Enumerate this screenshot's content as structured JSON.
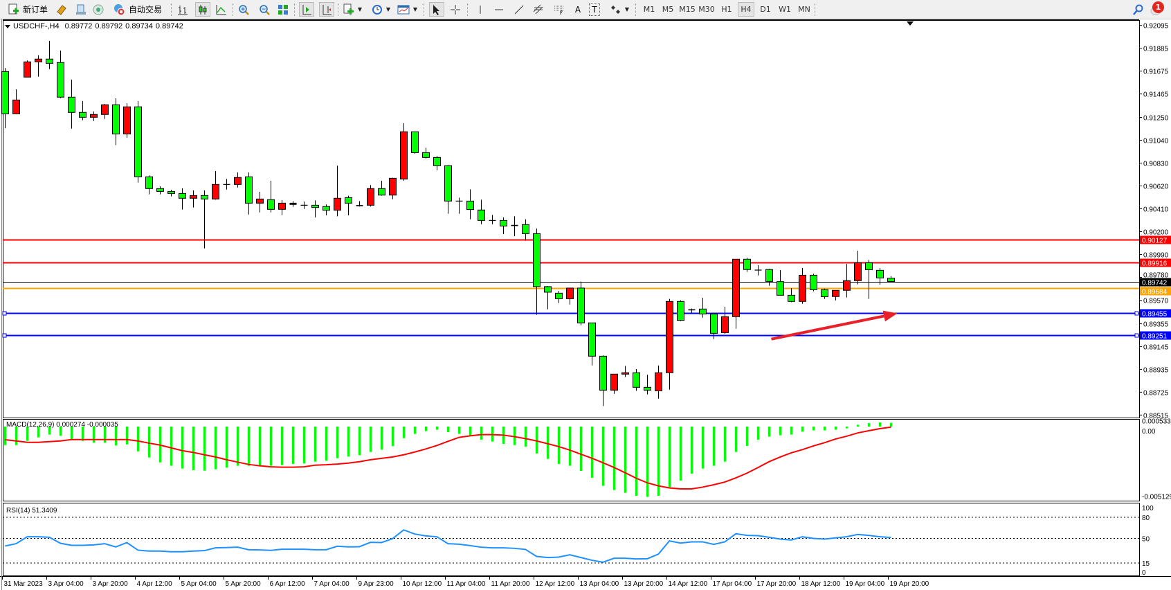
{
  "toolbar": {
    "new_order": "新订单",
    "auto_trading": "自动交易",
    "text_tool": "T",
    "label_tool": "A",
    "timeframes": [
      "M1",
      "M5",
      "M15",
      "M30",
      "H1",
      "H4",
      "D1",
      "W1",
      "MN"
    ],
    "active_timeframe": "H4",
    "notification_count": "1",
    "icons": [
      "new-order-icon",
      "metaeditor-icon",
      "navigator-icon",
      "signal-icon",
      "auto-trading-icon",
      "bar-chart-icon",
      "candlestick-icon",
      "line-chart-icon",
      "zoom-in-icon",
      "zoom-out-icon",
      "tile-windows-icon",
      "autoscroll-icon",
      "chart-shift-icon",
      "indicators-icon",
      "periods-icon",
      "templates-icon",
      "cursor-icon",
      "crosshair-icon",
      "vertical-line-icon",
      "horizontal-line-icon",
      "trendline-icon",
      "equidistant-channel-icon",
      "fibonacci-icon",
      "text-icon",
      "label-icon",
      "arrows-icon",
      "search-icon",
      "notification-icon"
    ]
  },
  "main": {
    "symbol": "USDCHF-,H4",
    "open": "0.89772",
    "high": "0.89792",
    "low": "0.89734",
    "close": "0.89742"
  },
  "macd": {
    "label": "MACD(12,26,9) 0.000274 -0.000035",
    "axis": [
      "0.000533",
      "0.00",
      "-0.005129"
    ]
  },
  "rsi": {
    "label": "RSI(14) 51.3409",
    "axis": [
      "100",
      "80",
      "50",
      "15",
      "0"
    ]
  },
  "colors": {
    "bull": "#ff0000",
    "bear": "#00ff00",
    "macd_hist": "#00ff00",
    "macd_signal": "#ff0000",
    "rsi": "#1e90ff",
    "resistance": "#ff0000",
    "bid": "#000000",
    "support_orange": "#ffa500",
    "support_blue": "#0000ff",
    "arrow": "#e8202a"
  },
  "chart_data": {
    "type": "candlestick",
    "price_axis_ticks": [
      "0.92095",
      "0.91885",
      "0.91675",
      "0.91465",
      "0.91250",
      "0.91040",
      "0.90830",
      "0.90620",
      "0.90410",
      "0.90200",
      "0.89990",
      "0.89780",
      "0.89570",
      "0.89355",
      "0.89145",
      "0.88935",
      "0.88725",
      "0.88515"
    ],
    "ylim": [
      0.88515,
      0.92095
    ],
    "time_labels": [
      "31 Mar 2023",
      "3 Apr 04:00",
      "3 Apr 20:00",
      "4 Apr 12:00",
      "5 Apr 04:00",
      "5 Apr 20:00",
      "6 Apr 12:00",
      "7 Apr 04:00",
      "9 Apr 23:00",
      "10 Apr 12:00",
      "11 Apr 04:00",
      "11 Apr 20:00",
      "12 Apr 12:00",
      "13 Apr 04:00",
      "13 Apr 20:00",
      "14 Apr 12:00",
      "17 Apr 04:00",
      "17 Apr 20:00",
      "18 Apr 12:00",
      "19 Apr 04:00",
      "19 Apr 20:00"
    ],
    "hlines": [
      {
        "price": "0.90127",
        "color": "#ff0000",
        "label_color": "#ffffff"
      },
      {
        "price": "0.89916",
        "color": "#ff0000",
        "label_color": "#ffffff"
      },
      {
        "price": "0.89742",
        "color": "#000000",
        "label_color": "#ffffff",
        "thin": true
      },
      {
        "price": "0.89684",
        "color": "#ffa500",
        "label_color": "#ffffff"
      },
      {
        "price": "0.89455",
        "color": "#0000ff",
        "label_color": "#ffffff",
        "handles": true
      },
      {
        "price": "0.89251",
        "color": "#0000ff",
        "label_color": "#ffffff",
        "handles": true
      }
    ],
    "arrow": {
      "from": [
        69.2,
        0.89213
      ],
      "to": [
        80.6,
        0.8945
      ]
    },
    "ohlc": [
      [
        0.91671,
        0.91703,
        0.91151,
        0.91283
      ],
      [
        0.91283,
        0.91508,
        0.91279,
        0.9141
      ],
      [
        0.9162,
        0.91773,
        0.9162,
        0.9176
      ],
      [
        0.9176,
        0.9182,
        0.91624,
        0.91786
      ],
      [
        0.91786,
        0.91953,
        0.91694,
        0.91747
      ],
      [
        0.91754,
        0.91864,
        0.91427,
        0.91436
      ],
      [
        0.91436,
        0.91597,
        0.91147,
        0.91296
      ],
      [
        0.91296,
        0.914,
        0.91224,
        0.91251
      ],
      [
        0.91251,
        0.91304,
        0.91217,
        0.91277
      ],
      [
        0.91277,
        0.91374,
        0.91236,
        0.91366
      ],
      [
        0.91366,
        0.91425,
        0.90995,
        0.91098
      ],
      [
        0.91098,
        0.9138,
        0.91064,
        0.91347
      ],
      [
        0.91347,
        0.914,
        0.90651,
        0.90704
      ],
      [
        0.90704,
        0.90717,
        0.90543,
        0.90596
      ],
      [
        0.90596,
        0.90617,
        0.90543,
        0.9057
      ],
      [
        0.9057,
        0.90585,
        0.90524,
        0.90551
      ],
      [
        0.90551,
        0.90598,
        0.90403,
        0.90507
      ],
      [
        0.90507,
        0.90579,
        0.90422,
        0.90532
      ],
      [
        0.90532,
        0.90579,
        0.90046,
        0.905
      ],
      [
        0.905,
        0.90757,
        0.90494,
        0.90634
      ],
      [
        0.90634,
        0.90685,
        0.90587,
        0.90634
      ],
      [
        0.90634,
        0.90744,
        0.90606,
        0.90698
      ],
      [
        0.90704,
        0.90744,
        0.90358,
        0.90462
      ],
      [
        0.90462,
        0.90566,
        0.90377,
        0.905
      ],
      [
        0.90494,
        0.90668,
        0.90377,
        0.90405
      ],
      [
        0.90405,
        0.9049,
        0.90352,
        0.90462
      ],
      [
        0.90462,
        0.90481,
        0.90428,
        0.9045
      ],
      [
        0.90443,
        0.90477,
        0.90409,
        0.90443
      ],
      [
        0.90443,
        0.90488,
        0.90331,
        0.90422
      ],
      [
        0.90431,
        0.9045,
        0.9035,
        0.90397
      ],
      [
        0.90397,
        0.90806,
        0.90341,
        0.90507
      ],
      [
        0.90513,
        0.9053,
        0.9035,
        0.90462
      ],
      [
        0.90441,
        0.90481,
        0.90431,
        0.90437
      ],
      [
        0.90443,
        0.90628,
        0.90431,
        0.90596
      ],
      [
        0.90596,
        0.90668,
        0.9053,
        0.90536
      ],
      [
        0.90536,
        0.90696,
        0.90498,
        0.90691
      ],
      [
        0.90683,
        0.91196,
        0.90668,
        0.91118
      ],
      [
        0.91118,
        0.91118,
        0.90916,
        0.90926
      ],
      [
        0.90926,
        0.90971,
        0.90872,
        0.90882
      ],
      [
        0.90882,
        0.90895,
        0.90763,
        0.90806
      ],
      [
        0.90806,
        0.90812,
        0.90365,
        0.90481
      ],
      [
        0.90481,
        0.90513,
        0.90365,
        0.90481
      ],
      [
        0.90481,
        0.90589,
        0.90314,
        0.90403
      ],
      [
        0.90399,
        0.90494,
        0.90269,
        0.90303
      ],
      [
        0.90303,
        0.90354,
        0.90269,
        0.90303
      ],
      [
        0.90303,
        0.90331,
        0.90178,
        0.90252
      ],
      [
        0.90259,
        0.90341,
        0.90159,
        0.90255
      ],
      [
        0.90265,
        0.90314,
        0.90117,
        0.90182
      ],
      [
        0.90182,
        0.90229,
        0.89436,
        0.89695
      ],
      [
        0.89695,
        0.897,
        0.89487,
        0.89644
      ],
      [
        0.89635,
        0.89656,
        0.89544,
        0.89584
      ],
      [
        0.89584,
        0.89682,
        0.89531,
        0.89682
      ],
      [
        0.89682,
        0.89741,
        0.8934,
        0.89362
      ],
      [
        0.89362,
        0.89362,
        0.88971,
        0.89056
      ],
      [
        0.89056,
        0.89064,
        0.88598,
        0.88744
      ],
      [
        0.88744,
        0.88891,
        0.8871,
        0.88891
      ],
      [
        0.88891,
        0.88967,
        0.88865,
        0.88904
      ],
      [
        0.88904,
        0.88937,
        0.88738,
        0.8877
      ],
      [
        0.8877,
        0.88886,
        0.88704,
        0.88744
      ],
      [
        0.88738,
        0.88971,
        0.88666,
        0.88904
      ],
      [
        0.88904,
        0.89582,
        0.88748,
        0.89559
      ],
      [
        0.89559,
        0.8957,
        0.89378,
        0.89385
      ],
      [
        0.89484,
        0.89493,
        0.89448,
        0.8948
      ],
      [
        0.89489,
        0.89593,
        0.8941,
        0.89444
      ],
      [
        0.89444,
        0.89444,
        0.89213,
        0.89266
      ],
      [
        0.89272,
        0.8951,
        0.89262,
        0.89419
      ],
      [
        0.89419,
        0.89947,
        0.89308,
        0.89947
      ],
      [
        0.89947,
        0.8996,
        0.89831,
        0.89852
      ],
      [
        0.89847,
        0.89892,
        0.89798,
        0.89847
      ],
      [
        0.89852,
        0.89858,
        0.89703,
        0.89743
      ],
      [
        0.89741,
        0.89847,
        0.89616,
        0.89616
      ],
      [
        0.89616,
        0.89682,
        0.89552,
        0.89559
      ],
      [
        0.89559,
        0.89866,
        0.89537,
        0.898
      ],
      [
        0.898,
        0.89813,
        0.89652,
        0.89667
      ],
      [
        0.89667,
        0.89677,
        0.89582,
        0.89603
      ],
      [
        0.89604,
        0.89661,
        0.89569,
        0.89661
      ],
      [
        0.89661,
        0.89904,
        0.89595,
        0.8975
      ],
      [
        0.8975,
        0.90025,
        0.89716,
        0.89915
      ],
      [
        0.89915,
        0.8994,
        0.89582,
        0.89851
      ],
      [
        0.89845,
        0.89866,
        0.89712,
        0.89775
      ],
      [
        0.89772,
        0.89792,
        0.89734,
        0.89742
      ]
    ],
    "macd_hist": [
      -0.00134,
      -0.00134,
      -0.00104,
      -0.00078,
      -0.00058,
      -0.00067,
      -0.00092,
      -0.00104,
      -0.00117,
      -0.00117,
      -0.00137,
      -0.00129,
      -0.00179,
      -0.00224,
      -0.00259,
      -0.00284,
      -0.00304,
      -0.00316,
      -0.00319,
      -0.00309,
      -0.00297,
      -0.00284,
      -0.00284,
      -0.00284,
      -0.00284,
      -0.00279,
      -0.00271,
      -0.00267,
      -0.00254,
      -0.00247,
      -0.00229,
      -0.00217,
      -0.00207,
      -0.00184,
      -0.00167,
      -0.00142,
      -0.00084,
      -0.00053,
      -0.00033,
      -0.00023,
      -0.0004,
      -0.00053,
      -0.00067,
      -0.00095,
      -0.00109,
      -0.00125,
      -0.00134,
      -0.00145,
      -0.00195,
      -0.00234,
      -0.00271,
      -0.00284,
      -0.00321,
      -0.00371,
      -0.00429,
      -0.00459,
      -0.00479,
      -0.00501,
      -0.00509,
      -0.00501,
      -0.00438,
      -0.00391,
      -0.00341,
      -0.00304,
      -0.00284,
      -0.00254,
      -0.00184,
      -0.0014,
      -0.00095,
      -0.00073,
      -0.00063,
      -0.00058,
      -0.00037,
      -0.00028,
      -0.00028,
      -0.00023,
      -0.00013,
      0.00013,
      0.00025,
      0.0003,
      0.000274
    ],
    "macd_signal": [
      -0.00095,
      -0.00104,
      -0.00114,
      -0.00114,
      -0.00109,
      -0.00104,
      -0.00094,
      -0.00094,
      -0.00094,
      -0.00094,
      -0.00094,
      -0.00094,
      -0.00104,
      -0.0012,
      -0.00134,
      -0.00154,
      -0.00174,
      -0.00187,
      -0.00204,
      -0.0022,
      -0.0024,
      -0.00257,
      -0.00274,
      -0.00284,
      -0.00291,
      -0.00294,
      -0.00294,
      -0.00291,
      -0.00279,
      -0.00276,
      -0.00271,
      -0.00264,
      -0.00254,
      -0.0024,
      -0.0023,
      -0.0022,
      -0.00204,
      -0.00184,
      -0.00162,
      -0.00137,
      -0.00107,
      -0.00078,
      -0.00067,
      -0.00058,
      -0.00058,
      -0.00062,
      -0.00073,
      -0.00087,
      -0.00104,
      -0.00124,
      -0.00145,
      -0.0017,
      -0.002,
      -0.00229,
      -0.00262,
      -0.00296,
      -0.00334,
      -0.00374,
      -0.00407,
      -0.00429,
      -0.00444,
      -0.00451,
      -0.00451,
      -0.00438,
      -0.00421,
      -0.00401,
      -0.00371,
      -0.00337,
      -0.00296,
      -0.00254,
      -0.0022,
      -0.0019,
      -0.00167,
      -0.0014,
      -0.00117,
      -0.0009,
      -0.0007,
      -0.00046,
      -0.0003,
      -0.00015,
      -3.5e-05
    ],
    "macd_ylim": [
      -0.005129,
      0.000533
    ],
    "rsi_values": [
      39.2,
      42.5,
      52.3,
      52.3,
      51.6,
      43.1,
      40.2,
      40.2,
      40.8,
      42.5,
      37.9,
      44.1,
      33.3,
      32.0,
      32.0,
      31.0,
      31.0,
      32.0,
      32.6,
      36.6,
      36.9,
      37.5,
      33.9,
      33.6,
      33.0,
      34.6,
      34.6,
      34.6,
      33.9,
      33.9,
      38.9,
      37.9,
      38.2,
      44.4,
      44.1,
      49.7,
      62.1,
      56.2,
      53.6,
      52.3,
      42.5,
      41.8,
      39.8,
      37.5,
      36.6,
      36.6,
      35.9,
      34.3,
      24.4,
      22.8,
      23.4,
      26.7,
      22.8,
      18.9,
      16.2,
      21.8,
      21.8,
      20.8,
      21.1,
      27.7,
      46.4,
      43.4,
      45.1,
      45.1,
      41.5,
      45.1,
      56.6,
      54.3,
      53.9,
      51.6,
      49.0,
      47.7,
      52.3,
      50.0,
      49.0,
      50.7,
      52.3,
      55.6,
      54.3,
      52.3,
      51.3409
    ],
    "rsi_levels": [
      80,
      50,
      15
    ],
    "rsi_ylim": [
      0,
      100
    ]
  }
}
